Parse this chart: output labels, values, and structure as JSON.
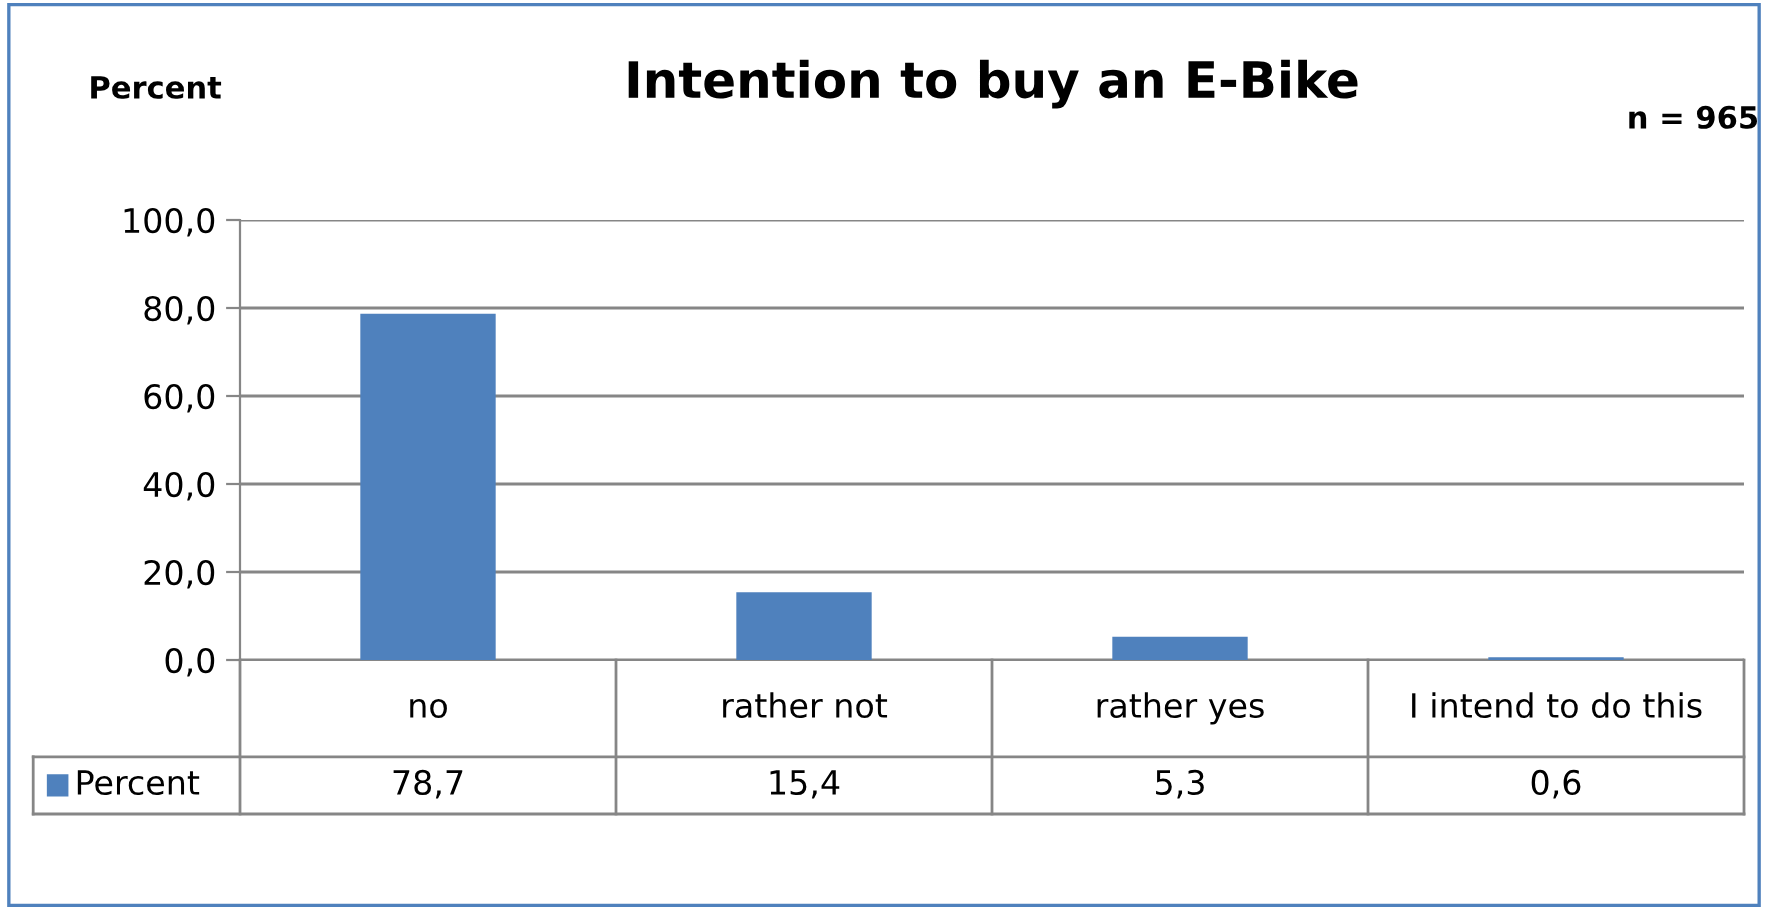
{
  "chart_data": {
    "type": "bar",
    "title": "Intention to buy an E-Bike",
    "ylabel": "Percent",
    "annotations": [
      "n = 965"
    ],
    "categories": [
      "no",
      "rather not",
      "rather yes",
      "I intend to do this"
    ],
    "series": [
      {
        "name": "Percent",
        "color": "#4f81bd",
        "values": [
          78.7,
          15.4,
          5.3,
          0.6
        ],
        "value_labels": [
          "78,7",
          "15,4",
          "5,3",
          "0,6"
        ]
      }
    ],
    "ylim": [
      0,
      100
    ],
    "yticks": [
      {
        "value": 0,
        "label": "0,0"
      },
      {
        "value": 20,
        "label": "20,0"
      },
      {
        "value": 40,
        "label": "40,0"
      },
      {
        "value": 60,
        "label": "60,0"
      },
      {
        "value": 80,
        "label": "80,0"
      },
      {
        "value": 100,
        "label": "100,0"
      }
    ],
    "grid": "y",
    "legend": "bottom left"
  }
}
